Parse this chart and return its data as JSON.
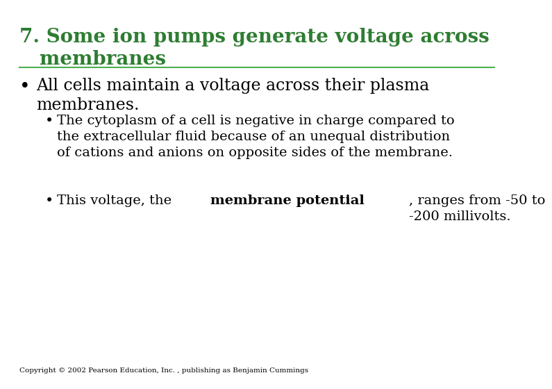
{
  "title_line1": "7. Some ion pumps generate voltage across",
  "title_line2": "   membranes",
  "title_color": "#2E7D32",
  "title_fontsize": 20,
  "line_color": "#4CAF50",
  "bg_color": "#FFFFFF",
  "bullet1_text": "All cells maintain a voltage across their plasma\nmembranes.",
  "bullet1_fontsize": 17,
  "bullet1_color": "#000000",
  "sub_bullet1_text": "The cytoplasm of a cell is negative in charge compared to\nthe extracellular fluid because of an unequal distribution\nof cations and anions on opposite sides of the membrane.",
  "sub_bullet2_text_before_bold": "This voltage, the ",
  "sub_bullet2_bold": "membrane potential",
  "sub_bullet2_text_after_bold": ", ranges from -50 to\n-200 millivolts.",
  "sub_bullet_fontsize": 14,
  "sub_bullet_color": "#000000",
  "bullet_color": "#000000",
  "copyright_text": "Copyright © 2002 Pearson Education, Inc. , publishing as Benjamin Cummings",
  "copyright_fontsize": 7.5,
  "copyright_color": "#000000"
}
